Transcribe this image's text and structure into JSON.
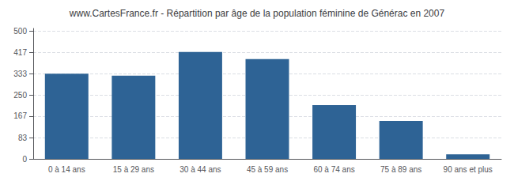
{
  "chart_data": {
    "type": "bar",
    "title": "www.CartesFrance.fr - Répartition par âge de la population féminine de Générac en 2007",
    "categories": [
      "0 à 14 ans",
      "15 à 29 ans",
      "30 à 44 ans",
      "45 à 59 ans",
      "60 à 74 ans",
      "75 à 89 ans",
      "90 ans et plus"
    ],
    "values": [
      333,
      325,
      418,
      390,
      210,
      148,
      18
    ],
    "color": "#2e6395",
    "ylim": [
      0,
      510
    ],
    "yticks": [
      0,
      83,
      167,
      250,
      333,
      417,
      500
    ],
    "grid": true
  }
}
